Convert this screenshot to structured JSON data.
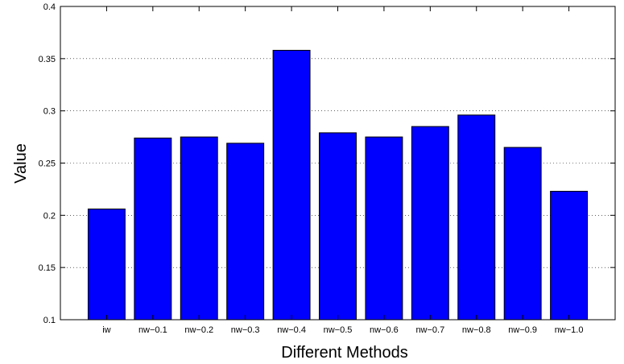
{
  "chart_data": {
    "type": "bar",
    "title": "",
    "xlabel": "Different Methods",
    "ylabel": "Value",
    "categories": [
      "iw",
      "nw−0.1",
      "nw−0.2",
      "nw−0.3",
      "nw−0.4",
      "nw−0.5",
      "nw−0.6",
      "nw−0.7",
      "nw−0.8",
      "nw−0.9",
      "nw−1.0"
    ],
    "values": [
      0.206,
      0.274,
      0.275,
      0.269,
      0.358,
      0.279,
      0.275,
      0.285,
      0.296,
      0.265,
      0.223
    ],
    "ylim": [
      0.1,
      0.4
    ],
    "yticks": [
      "0.1",
      "0.15",
      "0.2",
      "0.25",
      "0.3",
      "0.35",
      "0.4"
    ],
    "grid": "horizontal dotted",
    "bar_color": "#0000ff"
  }
}
